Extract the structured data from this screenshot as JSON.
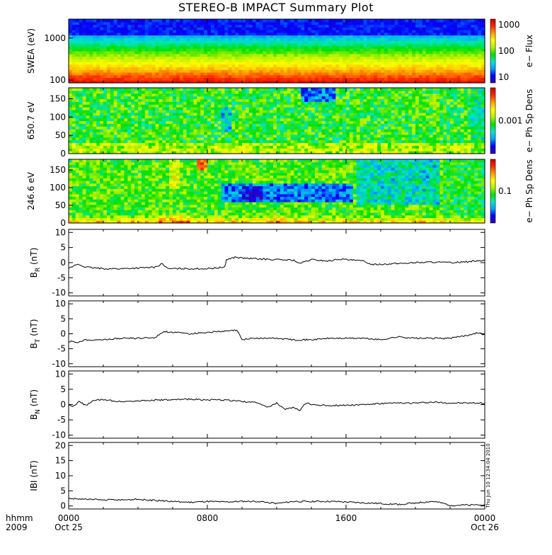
{
  "title": "STEREO-B IMPACT Summary Plot",
  "timestamp": "Thu Jun 10 12:34:04 2010",
  "time_axis": {
    "corner_top": "hhmm",
    "corner_bottom": "2009",
    "ticks": [
      {
        "hours": 0,
        "label": "0000",
        "date": "Oct 25"
      },
      {
        "hours": 8,
        "label": "0800",
        "date": ""
      },
      {
        "hours": 16,
        "label": "1600",
        "date": ""
      },
      {
        "hours": 24,
        "label": "0000",
        "date": "Oct 26"
      }
    ]
  },
  "colors": {
    "colormap": [
      "#3a00a8",
      "#0000ff",
      "#00a0ff",
      "#00e6c8",
      "#00e000",
      "#b4f000",
      "#ffff00",
      "#ffa000",
      "#ff2800",
      "#c80000"
    ]
  },
  "chart_data": [
    {
      "type": "heatmap",
      "ylabel": "SWEA (eV)",
      "yscale": "log",
      "ylim": [
        100,
        2000
      ],
      "yticks": [
        "1000",
        "100"
      ],
      "colorbar": {
        "label": "e− Flux",
        "scale": "log",
        "ticks": [
          "1000",
          "100",
          "10"
        ]
      },
      "pattern": "energy-stratified: high flux (red) near 100 eV, yellow ~200 eV, green ~400-600 eV, cyan ~800 eV, blue above 1200 eV"
    },
    {
      "type": "heatmap",
      "ylabel": "650.7 eV",
      "ylim": [
        0,
        180
      ],
      "yticks": [
        "150",
        "100",
        "50",
        "0"
      ],
      "colorbar": {
        "label": "e− Ph Sp Dens",
        "scale": "log",
        "ticks": [
          "0.001"
        ]
      },
      "pattern": "mostly green/cyan; blue patch at top near 1300-1500 UT and near 0900 UT around 100 deg"
    },
    {
      "type": "heatmap",
      "ylabel": "246.6 eV",
      "ylim": [
        0,
        180
      ],
      "yticks": [
        "150",
        "100",
        "50",
        "0"
      ],
      "colorbar": {
        "label": "e− Ph Sp Dens",
        "scale": "log",
        "ticks": [
          "0.1"
        ]
      },
      "pattern": "red/orange near 0 deg and near 180 deg 0400-0600 UT; blue/purple depletion near 90 deg 0900-1600 UT; green elsewhere"
    },
    {
      "type": "line",
      "ylabel": "B",
      "ylabel_sub": "R",
      "ylabel_unit": "(nT)",
      "ylim": [
        -11,
        11
      ],
      "yticks": [
        10,
        5,
        0,
        -5,
        -10
      ],
      "x_hours": [
        0,
        0.5,
        1,
        2,
        3,
        4,
        5,
        5.4,
        5.7,
        6,
        7,
        8,
        9,
        9.1,
        9.6,
        10,
        11,
        12,
        13,
        13.3,
        14,
        15,
        15.6,
        16,
        17,
        17.5,
        18,
        19,
        20,
        21,
        22,
        23,
        24
      ],
      "values": [
        -2,
        -0.5,
        -1.5,
        -2,
        -2,
        -1.8,
        -1.5,
        -0.3,
        -2,
        -2,
        -2,
        -2,
        -1.5,
        1,
        1.8,
        1.5,
        1.2,
        1,
        0.8,
        -0.3,
        1,
        0.5,
        1.2,
        1,
        0.5,
        -0.6,
        -0.5,
        -0.3,
        0,
        0.2,
        0,
        0.3,
        0.8
      ]
    },
    {
      "type": "line",
      "ylabel": "B",
      "ylabel_sub": "T",
      "ylabel_unit": "(nT)",
      "ylim": [
        -11,
        11
      ],
      "yticks": [
        10,
        5,
        0,
        -5,
        -10
      ],
      "x_hours": [
        0,
        0.5,
        1,
        2,
        3,
        4,
        5,
        5.5,
        6,
        7,
        8,
        9,
        9.7,
        10,
        10.5,
        11,
        12,
        13,
        14,
        15,
        16,
        17,
        18,
        19,
        20,
        21,
        22,
        23,
        23.5,
        24
      ],
      "values": [
        -2.5,
        -2.8,
        -2,
        -2,
        -1.5,
        -1.5,
        -1.2,
        0.8,
        0.5,
        0,
        0.5,
        0.8,
        1.2,
        -2,
        -1.5,
        -1.5,
        -1.5,
        -2,
        -2,
        -1.5,
        -1.5,
        -1.5,
        -2,
        -1,
        -1.5,
        -1.5,
        -1.5,
        -0.5,
        0.3,
        -0.2
      ]
    },
    {
      "type": "line",
      "ylabel": "B",
      "ylabel_sub": "N",
      "ylabel_unit": "(nT)",
      "ylim": [
        -11,
        11
      ],
      "yticks": [
        10,
        5,
        0,
        -5,
        -10
      ],
      "x_hours": [
        0,
        0.3,
        0.6,
        1,
        1.5,
        2,
        3,
        4,
        5,
        6,
        7,
        8,
        9,
        10,
        11,
        11.5,
        12,
        12.5,
        13,
        13.3,
        13.7,
        14,
        15,
        16,
        17,
        18,
        19,
        20,
        21,
        22,
        23,
        24
      ],
      "values": [
        0,
        -0.6,
        1,
        -0.3,
        1.5,
        1.5,
        1,
        1.2,
        1.5,
        1.5,
        1.8,
        1.5,
        1.5,
        1,
        0.5,
        -1,
        0.5,
        -1.5,
        -1,
        -2,
        0.5,
        0,
        -0.3,
        -0.2,
        0,
        0.3,
        0.5,
        0.5,
        0.8,
        0.5,
        0.5,
        0.5
      ]
    },
    {
      "type": "line",
      "ylabel": "IBI",
      "ylabel_sub": "",
      "ylabel_unit": "(nT)",
      "ylim": [
        -1,
        21
      ],
      "yticks": [
        20,
        15,
        10,
        5,
        0
      ],
      "x_hours": [
        0,
        1,
        2,
        3,
        4,
        5,
        6,
        7,
        8,
        9,
        10,
        11,
        12,
        13,
        14,
        15,
        16,
        17,
        18,
        19,
        20,
        21,
        21.5,
        22,
        23,
        24
      ],
      "values": [
        2.5,
        2.2,
        2,
        2,
        2.2,
        1.8,
        1.5,
        1.2,
        1.5,
        1.3,
        1.5,
        1.5,
        0.8,
        1.5,
        1.5,
        1.5,
        1.3,
        1,
        0.8,
        0.5,
        1,
        1.5,
        1,
        0.2,
        0.3,
        0.5
      ]
    }
  ]
}
